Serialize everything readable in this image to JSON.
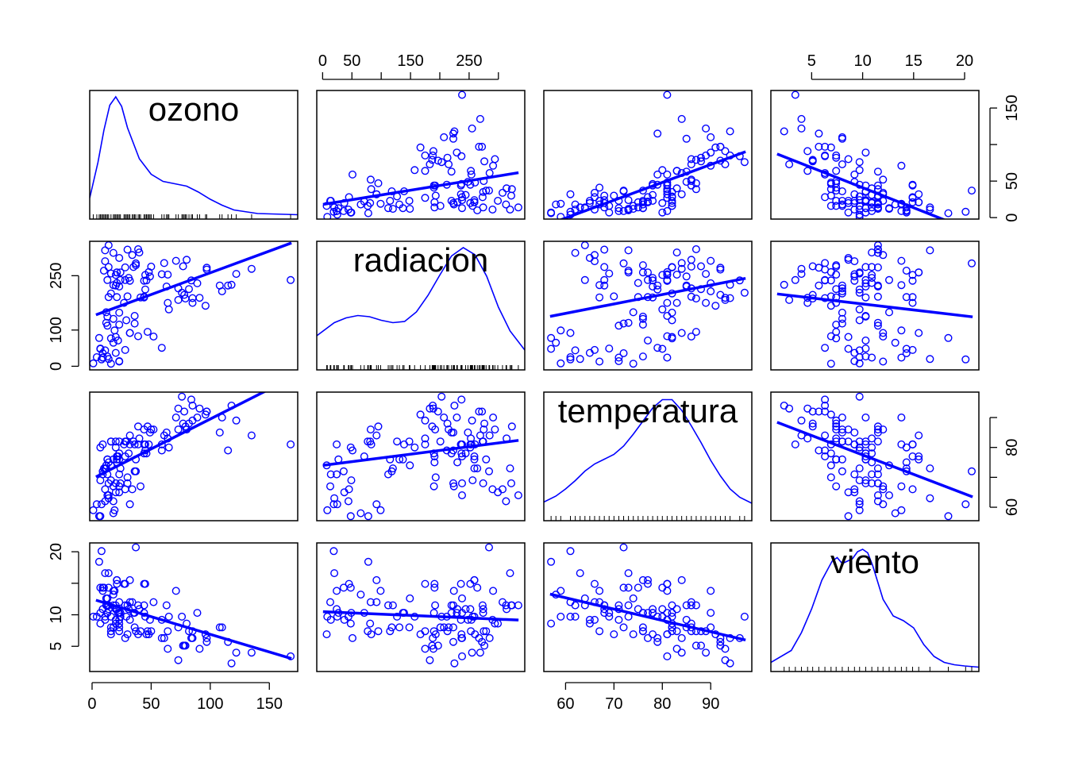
{
  "colors": {
    "points": "#0000ff",
    "axes": "#000000",
    "background": "#ffffff"
  },
  "chart_data": {
    "type": "scatter",
    "layout": "scatterplot-matrix",
    "variables": [
      "ozono",
      "radiacion",
      "temperatura",
      "viento"
    ],
    "diagonal": "kernel-density-with-rug",
    "off_diagonal": "scatter-with-linear-fit",
    "axes": {
      "ozono": {
        "range": [
          -2,
          174
        ],
        "ticks": [
          0,
          50,
          100,
          150
        ],
        "tick_labels": [
          "0",
          "50",
          "100",
          "150"
        ]
      },
      "radiacion": {
        "range": [
          -10,
          345
        ],
        "ticks": [
          0,
          50,
          100,
          150,
          200,
          250,
          300
        ],
        "tick_labels": [
          "0",
          "50",
          "",
          "150",
          "",
          "250",
          ""
        ]
      },
      "temperatura": {
        "range": [
          55.5,
          98.5
        ],
        "ticks": [
          60,
          70,
          80,
          90
        ],
        "tick_labels": [
          "60",
          "70",
          "80",
          "90"
        ]
      },
      "viento": {
        "range": [
          1,
          21.4
        ],
        "ticks": [
          5,
          10,
          15,
          20
        ],
        "tick_labels": [
          "5",
          "10",
          "15",
          "20"
        ]
      }
    },
    "row_axis_ticks": {
      "ozono": {
        "ticks": [
          0,
          50,
          100,
          150
        ],
        "tick_labels": [
          "0",
          "50",
          "",
          "150"
        ]
      },
      "radiacion": {
        "ticks": [
          0,
          100,
          250
        ],
        "tick_labels": [
          "0",
          "100",
          "250"
        ]
      },
      "temperatura": {
        "ticks": [
          60,
          70,
          80,
          90
        ],
        "tick_labels": [
          "60",
          "",
          "80",
          ""
        ]
      },
      "viento": {
        "ticks": [
          5,
          10,
          15,
          20
        ],
        "tick_labels": [
          "5",
          "10",
          "",
          "20"
        ]
      }
    },
    "fits": {
      "radiacion~ozono": {
        "intercept": 138,
        "slope": 1.2
      },
      "temperatura~ozono": {
        "intercept": 69.5,
        "slope": 0.2
      },
      "viento~ozono": {
        "intercept": 12.5,
        "slope": -0.056
      },
      "ozono~radiacion": {
        "intercept": 18,
        "slope": 0.13
      },
      "temperatura~radiacion": {
        "intercept": 74,
        "slope": 0.025
      },
      "viento~radiacion": {
        "intercept": 10.5,
        "slope": -0.004
      },
      "ozono~temperatura": {
        "intercept": -147,
        "slope": 2.44
      },
      "radiacion~temperatura": {
        "intercept": -10,
        "slope": 2.6
      },
      "viento~temperatura": {
        "intercept": 23.5,
        "slope": -0.18
      },
      "ozono~viento": {
        "intercept": 96,
        "slope": -5.5
      },
      "radiacion~viento": {
        "intercept": 205,
        "slope": -3.3
      },
      "temperatura~viento": {
        "intercept": 90.5,
        "slope": -1.3
      }
    },
    "density": {
      "ozono": {
        "x": [
          -2,
          5,
          10,
          15,
          20,
          25,
          30,
          40,
          50,
          60,
          70,
          80,
          90,
          100,
          110,
          120,
          140,
          174
        ],
        "y": [
          0.15,
          0.45,
          0.72,
          0.93,
          1.0,
          0.92,
          0.74,
          0.48,
          0.35,
          0.29,
          0.27,
          0.25,
          0.2,
          0.14,
          0.09,
          0.05,
          0.02,
          0.01
        ]
      },
      "radiacion": {
        "x": [
          -10,
          20,
          40,
          60,
          80,
          100,
          120,
          140,
          160,
          180,
          200,
          220,
          240,
          260,
          280,
          300,
          320,
          345
        ],
        "y": [
          0.26,
          0.37,
          0.41,
          0.43,
          0.42,
          0.39,
          0.37,
          0.38,
          0.46,
          0.6,
          0.77,
          0.93,
          1.0,
          0.94,
          0.76,
          0.5,
          0.3,
          0.14
        ]
      },
      "temperatura": {
        "x": [
          55.5,
          58,
          60,
          62,
          64,
          66,
          68,
          70,
          72,
          74,
          76,
          78,
          80,
          82,
          84,
          86,
          88,
          90,
          92,
          94,
          96,
          98.5
        ],
        "y": [
          0.13,
          0.18,
          0.24,
          0.31,
          0.39,
          0.45,
          0.49,
          0.53,
          0.6,
          0.7,
          0.81,
          0.92,
          0.99,
          0.99,
          0.9,
          0.77,
          0.63,
          0.48,
          0.35,
          0.24,
          0.17,
          0.12
        ]
      },
      "viento": {
        "x": [
          1,
          3,
          4,
          5,
          6,
          7,
          7.5,
          8,
          9,
          9.5,
          10,
          10.5,
          11,
          12,
          13,
          14,
          15,
          16,
          17,
          18,
          19,
          20,
          21.4
        ],
        "y": [
          0.05,
          0.15,
          0.3,
          0.5,
          0.74,
          0.9,
          0.93,
          0.88,
          0.92,
          0.98,
          1.0,
          0.97,
          0.86,
          0.58,
          0.44,
          0.4,
          0.34,
          0.2,
          0.1,
          0.05,
          0.03,
          0.02,
          0.01
        ]
      }
    },
    "points": [
      [
        41,
        190,
        67,
        7.4
      ],
      [
        36,
        118,
        72,
        8
      ],
      [
        12,
        149,
        74,
        12.6
      ],
      [
        18,
        313,
        62,
        11.5
      ],
      [
        28,
        45,
        66,
        14.9
      ],
      [
        23,
        299,
        65,
        8.6
      ],
      [
        19,
        99,
        59,
        13.8
      ],
      [
        8,
        19,
        61,
        20.1
      ],
      [
        7,
        48,
        57,
        8.6
      ],
      [
        16,
        256,
        69,
        9.7
      ],
      [
        11,
        290,
        66,
        9.2
      ],
      [
        14,
        274,
        68,
        10.9
      ],
      [
        18,
        65,
        58,
        13.2
      ],
      [
        14,
        334,
        64,
        11.5
      ],
      [
        34,
        307,
        66,
        12
      ],
      [
        6,
        78,
        57,
        18.4
      ],
      [
        30,
        322,
        68,
        11.5
      ],
      [
        11,
        44,
        62,
        9.7
      ],
      [
        1,
        8,
        59,
        9.7
      ],
      [
        11,
        320,
        73,
        16.6
      ],
      [
        4,
        25,
        61,
        9.7
      ],
      [
        32,
        92,
        61,
        12
      ],
      [
        23,
        13,
        67,
        12
      ],
      [
        45,
        252,
        81,
        14.9
      ],
      [
        115,
        223,
        79,
        5.7
      ],
      [
        37,
        279,
        76,
        7.4
      ],
      [
        29,
        127,
        82,
        9.7
      ],
      [
        71,
        291,
        90,
        13.8
      ],
      [
        39,
        323,
        87,
        11.5
      ],
      [
        23,
        148,
        82,
        8
      ],
      [
        21,
        191,
        77,
        14.9
      ],
      [
        37,
        284,
        72,
        20.7
      ],
      [
        20,
        37,
        65,
        9.2
      ],
      [
        12,
        120,
        73,
        11.5
      ],
      [
        13,
        137,
        76,
        10.3
      ],
      [
        135,
        269,
        84,
        4
      ],
      [
        49,
        248,
        85,
        9.2
      ],
      [
        32,
        236,
        81,
        9.2
      ],
      [
        64,
        175,
        83,
        4.6
      ],
      [
        40,
        314,
        83,
        10.9
      ],
      [
        77,
        276,
        88,
        5.1
      ],
      [
        97,
        267,
        92,
        6.3
      ],
      [
        97,
        272,
        92,
        5.7
      ],
      [
        85,
        175,
        89,
        7.4
      ],
      [
        10,
        264,
        73,
        14.3
      ],
      [
        27,
        175,
        81,
        14.9
      ],
      [
        7,
        48,
        80,
        14.3
      ],
      [
        48,
        260,
        81,
        6.9
      ],
      [
        35,
        274,
        82,
        10.3
      ],
      [
        61,
        285,
        84,
        6.3
      ],
      [
        79,
        187,
        87,
        5.1
      ],
      [
        63,
        220,
        85,
        11.5
      ],
      [
        16,
        7,
        74,
        6.9
      ],
      [
        80,
        294,
        86,
        8.6
      ],
      [
        108,
        223,
        85,
        8
      ],
      [
        20,
        81,
        82,
        8.6
      ],
      [
        52,
        82,
        86,
        12
      ],
      [
        82,
        213,
        88,
        7.4
      ],
      [
        50,
        275,
        86,
        7.4
      ],
      [
        64,
        253,
        83,
        7.4
      ],
      [
        59,
        254,
        81,
        9.2
      ],
      [
        39,
        83,
        81,
        6.9
      ],
      [
        9,
        24,
        81,
        13.8
      ],
      [
        16,
        77,
        82,
        7.4
      ],
      [
        122,
        255,
        89,
        4
      ],
      [
        89,
        229,
        90,
        10.3
      ],
      [
        110,
        207,
        90,
        8
      ],
      [
        44,
        192,
        86,
        11.5
      ],
      [
        28,
        273,
        82,
        11.5
      ],
      [
        65,
        157,
        80,
        9.7
      ],
      [
        22,
        71,
        77,
        10.3
      ],
      [
        59,
        51,
        79,
        6.3
      ],
      [
        23,
        115,
        76,
        7.4
      ],
      [
        31,
        244,
        78,
        10.9
      ],
      [
        44,
        190,
        78,
        10.3
      ],
      [
        21,
        259,
        77,
        15.5
      ],
      [
        9,
        36,
        72,
        14.3
      ],
      [
        45,
        212,
        79,
        9.7
      ],
      [
        168,
        238,
        81,
        3.4
      ],
      [
        73,
        215,
        86,
        8
      ],
      [
        76,
        203,
        97,
        9.7
      ],
      [
        118,
        225,
        94,
        2.3
      ],
      [
        84,
        237,
        96,
        6.3
      ],
      [
        85,
        188,
        94,
        6.3
      ],
      [
        96,
        167,
        91,
        6.9
      ],
      [
        78,
        197,
        92,
        5.1
      ],
      [
        73,
        183,
        93,
        2.8
      ],
      [
        91,
        189,
        93,
        4.6
      ],
      [
        47,
        95,
        87,
        7.4
      ],
      [
        32,
        92,
        84,
        15.5
      ],
      [
        20,
        252,
        80,
        10.9
      ],
      [
        23,
        220,
        78,
        10.3
      ],
      [
        21,
        230,
        75,
        10.9
      ],
      [
        24,
        259,
        73,
        9.7
      ],
      [
        44,
        236,
        81,
        14.9
      ],
      [
        21,
        259,
        76,
        15.5
      ],
      [
        28,
        238,
        77,
        6.3
      ],
      [
        9,
        24,
        71,
        10.9
      ],
      [
        13,
        112,
        71,
        11.5
      ],
      [
        46,
        237,
        78,
        6.9
      ],
      [
        18,
        224,
        67,
        13.8
      ],
      [
        13,
        27,
        76,
        10.3
      ],
      [
        24,
        238,
        68,
        10.3
      ],
      [
        16,
        201,
        82,
        8
      ],
      [
        13,
        238,
        64,
        12.6
      ],
      [
        23,
        14,
        71,
        9.2
      ],
      [
        36,
        139,
        81,
        10.3
      ],
      [
        7,
        49,
        69,
        10.3
      ],
      [
        14,
        20,
        63,
        16.6
      ],
      [
        30,
        193,
        70,
        6.9
      ],
      [
        14,
        191,
        75,
        14.3
      ],
      [
        18,
        131,
        76,
        8
      ],
      [
        20,
        223,
        68,
        11.5
      ]
    ]
  }
}
